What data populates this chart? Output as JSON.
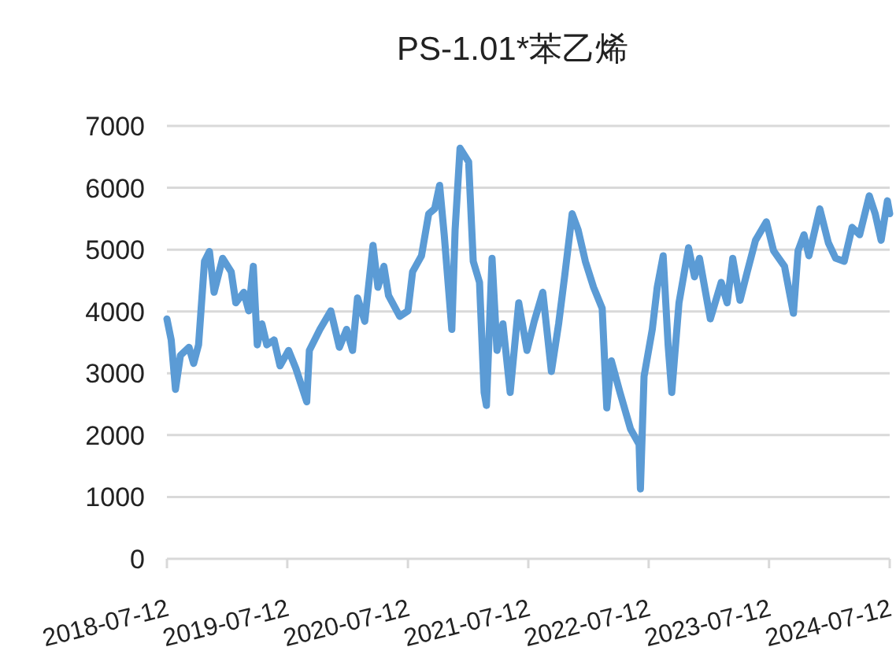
{
  "chart_data": {
    "type": "line",
    "title": "PS-1.01*苯乙烯",
    "color": "#5b9bd5",
    "grid": "y",
    "xlim": [
      "2018-07-12",
      "2024-07-12"
    ],
    "xticks": [
      "2018-07-12",
      "2019-07-12",
      "2020-07-12",
      "2021-07-12",
      "2022-07-12",
      "2023-07-12",
      "2024-07-12"
    ],
    "ylim": [
      0,
      7000
    ],
    "yticks": [
      0,
      1000,
      2000,
      3000,
      4000,
      5000,
      6000,
      7000
    ],
    "x": [
      "2018-07-12",
      "2018-07-25",
      "2018-08-07",
      "2018-08-22",
      "2018-09-17",
      "2018-10-01",
      "2018-10-16",
      "2018-11-03",
      "2018-11-18",
      "2018-12-02",
      "2018-12-28",
      "2019-01-23",
      "2019-02-06",
      "2019-03-02",
      "2019-03-17",
      "2019-03-31",
      "2019-04-12",
      "2019-04-26",
      "2019-05-11",
      "2019-06-02",
      "2019-06-20",
      "2019-07-16",
      "2019-08-07",
      "2019-09-09",
      "2019-09-17",
      "2019-10-19",
      "2019-11-21",
      "2019-12-17",
      "2020-01-08",
      "2020-01-26",
      "2020-02-10",
      "2020-03-03",
      "2020-03-28",
      "2020-04-12",
      "2020-04-30",
      "2020-05-14",
      "2020-06-17",
      "2020-07-12",
      "2020-07-26",
      "2020-08-22",
      "2020-09-13",
      "2020-10-01",
      "2020-10-16",
      "2020-10-30",
      "2020-11-22",
      "2020-12-02",
      "2020-12-17",
      "2021-01-12",
      "2021-01-26",
      "2021-02-14",
      "2021-02-28",
      "2021-03-07",
      "2021-03-24",
      "2021-04-08",
      "2021-04-26",
      "2021-05-18",
      "2021-06-13",
      "2021-07-08",
      "2021-07-30",
      "2021-08-25",
      "2021-09-20",
      "2021-10-12",
      "2021-10-30",
      "2021-11-22",
      "2021-12-10",
      "2022-01-01",
      "2022-01-26",
      "2022-02-21",
      "2022-03-07",
      "2022-03-21",
      "2022-04-16",
      "2022-05-18",
      "2022-06-13",
      "2022-06-17",
      "2022-06-28",
      "2022-07-23",
      "2022-08-07",
      "2022-08-25",
      "2022-09-09",
      "2022-09-20",
      "2022-10-12",
      "2022-11-10",
      "2022-11-28",
      "2022-12-13",
      "2023-01-15",
      "2023-02-17",
      "2023-03-07",
      "2023-03-24",
      "2023-04-15",
      "2023-05-07",
      "2023-06-01",
      "2023-07-04",
      "2023-07-26",
      "2023-08-28",
      "2023-09-24",
      "2023-10-08",
      "2023-10-26",
      "2023-11-10",
      "2023-12-13",
      "2024-01-08",
      "2024-01-30",
      "2024-02-25",
      "2024-03-20",
      "2024-04-12",
      "2024-05-11",
      "2024-05-29",
      "2024-06-16",
      "2024-07-05",
      "2024-07-12"
    ],
    "values": [
      3880,
      3540,
      2740,
      3290,
      3420,
      3160,
      3460,
      4810,
      4970,
      4310,
      4860,
      4640,
      4140,
      4310,
      4010,
      4730,
      3460,
      3800,
      3460,
      3540,
      3120,
      3370,
      3080,
      2540,
      3370,
      3710,
      4010,
      3420,
      3710,
      3370,
      4220,
      3840,
      5070,
      4390,
      4730,
      4260,
      3920,
      4010,
      4640,
      4900,
      5580,
      5660,
      6040,
      5240,
      3710,
      5320,
      6640,
      6420,
      4810,
      4470,
      2690,
      2480,
      4860,
      3370,
      3800,
      2690,
      4140,
      3370,
      3840,
      4310,
      3030,
      3800,
      4560,
      5580,
      5320,
      4810,
      4390,
      4050,
      2440,
      3200,
      2690,
      2100,
      1850,
      1130,
      2950,
      3710,
      4390,
      4900,
      3460,
      2690,
      4140,
      5030,
      4560,
      4860,
      3880,
      4470,
      4140,
      4860,
      4180,
      4640,
      5150,
      5450,
      4980,
      4730,
      3970,
      4980,
      5240,
      4900,
      5660,
      5110,
      4860,
      4810,
      5360,
      5240,
      5870,
      5580,
      5150,
      5790,
      5580
    ]
  }
}
